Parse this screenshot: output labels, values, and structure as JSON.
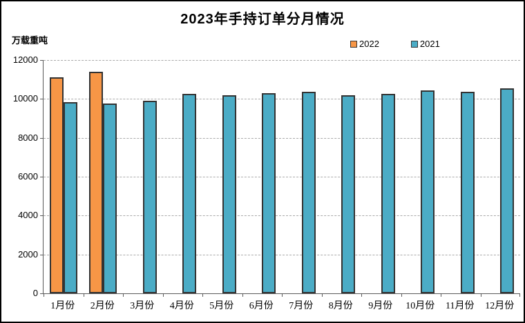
{
  "chart_data": {
    "type": "bar",
    "title": "2023年手持订单分月情况",
    "ylabel": "万载重吨",
    "xlabel": "",
    "categories": [
      "1月份",
      "2月份",
      "3月份",
      "4月份",
      "5月份",
      "6月份",
      "7月份",
      "8月份",
      "9月份",
      "10月份",
      "11月份",
      "12月份"
    ],
    "series": [
      {
        "name": "2022",
        "color": "#F79646",
        "values": [
          11100,
          11400,
          null,
          null,
          null,
          null,
          null,
          null,
          null,
          null,
          null,
          null
        ]
      },
      {
        "name": "2021",
        "color": "#4BACC6",
        "values": [
          9850,
          9750,
          9900,
          10250,
          10200,
          10300,
          10350,
          10200,
          10250,
          10450,
          10350,
          10550
        ]
      }
    ],
    "ylim": [
      0,
      12000
    ],
    "ytick_step": 2000,
    "grid": "horizontal-dashed",
    "legend_position": "top-center"
  },
  "colors": {
    "bar_border": "#333333",
    "gridline": "#a9a9a9",
    "axis": "#595959",
    "text": "#000000",
    "background": "#ffffff"
  }
}
